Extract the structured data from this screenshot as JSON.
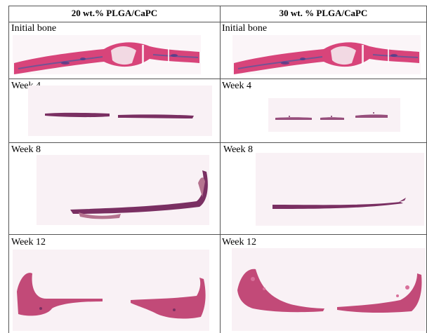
{
  "columns": [
    {
      "header": "20 wt.% PLGA/CaPC"
    },
    {
      "header": "30 wt. % PLGA/CaPC"
    }
  ],
  "rows": [
    {
      "label_left": "Initial bone",
      "label_right": "Initial bone"
    },
    {
      "label_left": "Week 4",
      "label_right": "Week 4"
    },
    {
      "label_left": "Week 8",
      "label_right": "Week 8"
    },
    {
      "label_left": "Week 12",
      "label_right": "Week 12"
    }
  ],
  "colors": {
    "bone_pink": "#d8447a",
    "tissue_dark": "#7a2f62",
    "tissue_light": "#b5738f",
    "background_pink": "#f7eef2"
  }
}
